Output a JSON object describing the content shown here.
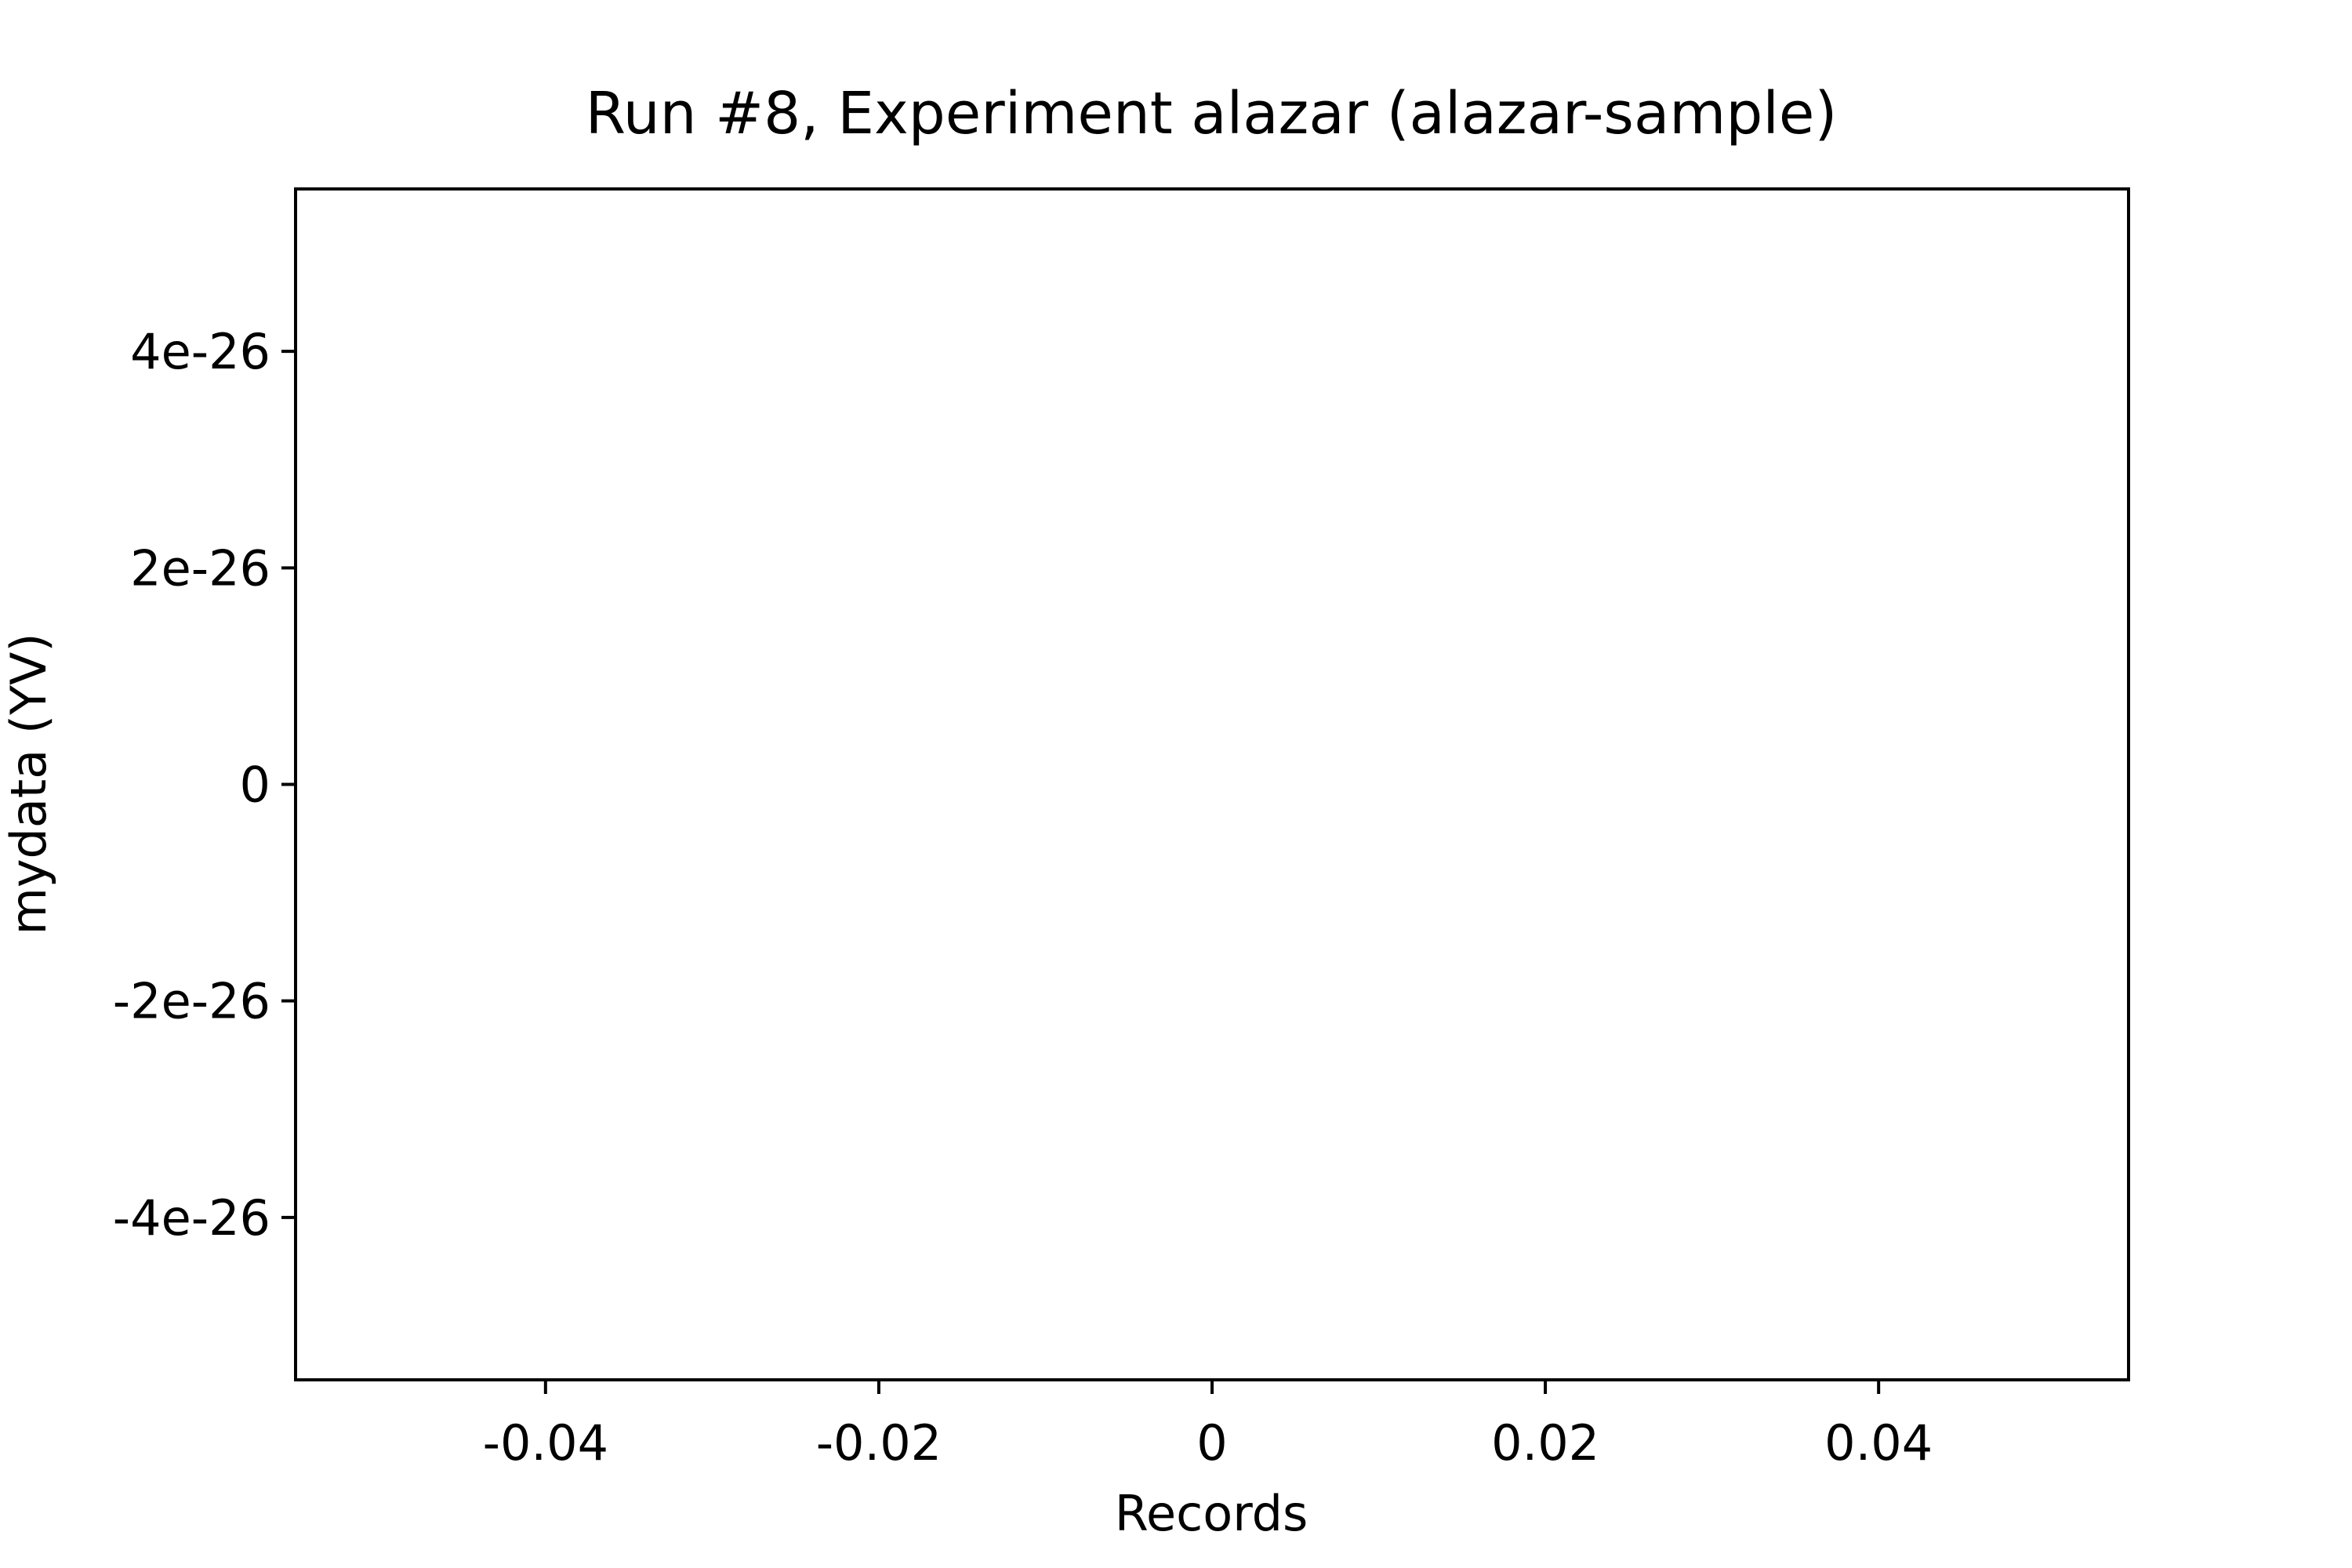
{
  "chart_data": {
    "type": "line",
    "title": "Run #8, Experiment alazar (alazar-sample)",
    "xlabel": "Records",
    "ylabel": "mydata (YV)",
    "xlim": [
      -0.055,
      0.055
    ],
    "ylim": [
      -5.5e-26,
      5.5e-26
    ],
    "x_ticks": [
      {
        "value": -0.04,
        "label": "-0.04"
      },
      {
        "value": -0.02,
        "label": "-0.02"
      },
      {
        "value": 0,
        "label": "0"
      },
      {
        "value": 0.02,
        "label": "0.02"
      },
      {
        "value": 0.04,
        "label": "0.04"
      }
    ],
    "y_ticks": [
      {
        "value": 4e-26,
        "label": "4e-26"
      },
      {
        "value": 2e-26,
        "label": "2e-26"
      },
      {
        "value": 0,
        "label": "0"
      },
      {
        "value": -2e-26,
        "label": "-2e-26"
      },
      {
        "value": -4e-26,
        "label": "-4e-26"
      }
    ],
    "grid": false,
    "series": [
      {
        "x": [],
        "y": []
      }
    ]
  },
  "colors": {
    "axes": "#000000",
    "background": "#ffffff"
  }
}
